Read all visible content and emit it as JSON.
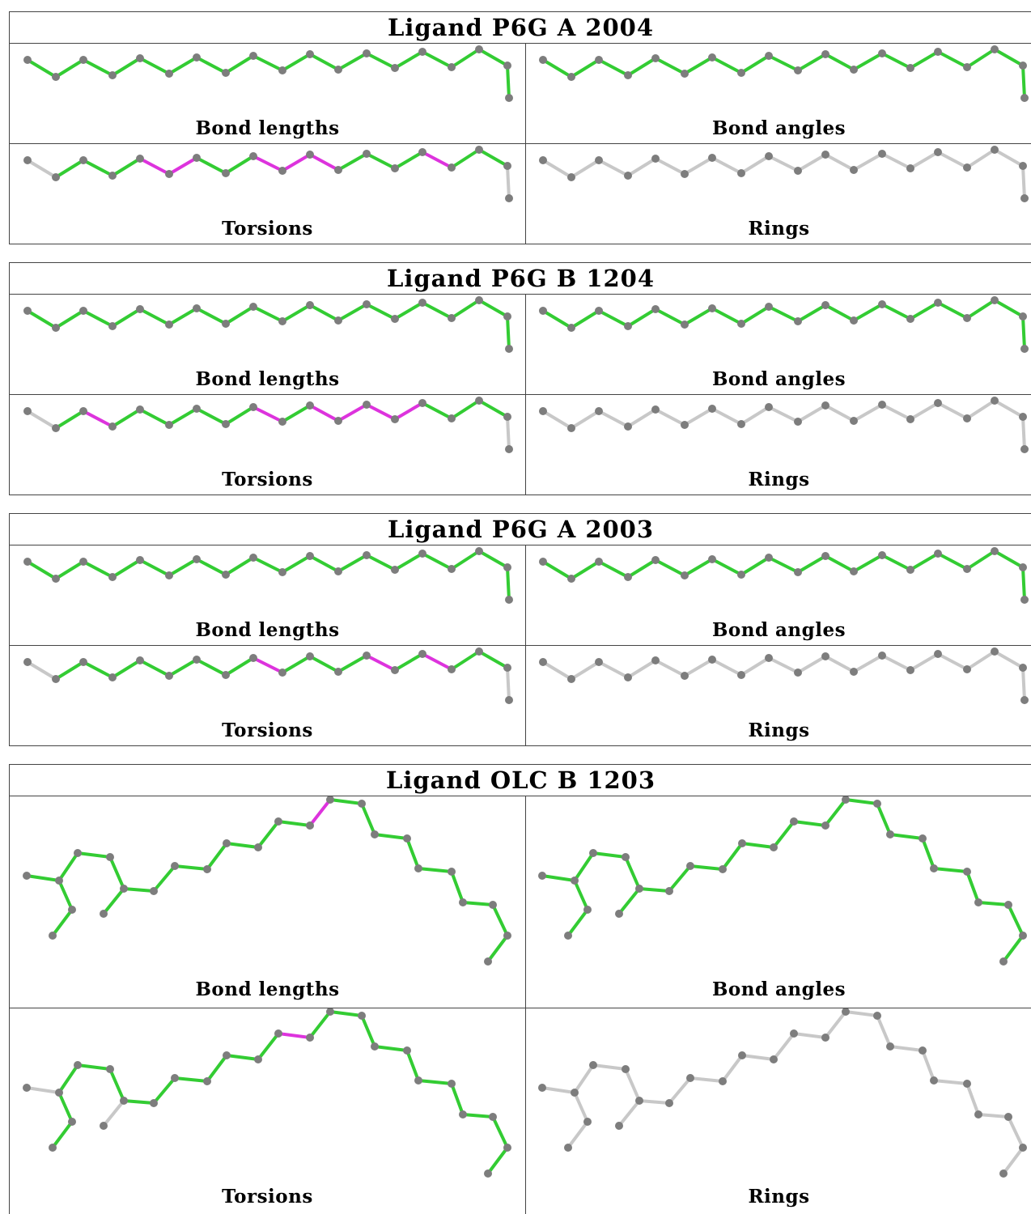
{
  "colors": {
    "ok": "#33cc33",
    "outlier": "#dd33dd",
    "none": "#c8c8c8",
    "atom": "#7d7d7d"
  },
  "panel_labels": [
    "Bond lengths",
    "Bond angles",
    "Torsions",
    "Rings"
  ],
  "ligands": [
    {
      "title": "Ligand P6G A 2004",
      "molecule": "p6g",
      "panels": [
        {
          "label": "Bond lengths",
          "mode": "all"
        },
        {
          "label": "Bond angles",
          "mode": "all"
        },
        {
          "label": "Torsions",
          "mode": "torsion",
          "outliers": [
            4,
            5,
            8,
            9,
            10,
            14
          ]
        },
        {
          "label": "Rings",
          "mode": "none"
        }
      ]
    },
    {
      "title": "Ligand P6G B 1204",
      "molecule": "p6g",
      "panels": [
        {
          "label": "Bond lengths",
          "mode": "all"
        },
        {
          "label": "Bond angles",
          "mode": "all"
        },
        {
          "label": "Torsions",
          "mode": "torsion",
          "outliers": [
            2,
            8,
            10,
            11,
            12,
            13
          ]
        },
        {
          "label": "Rings",
          "mode": "none"
        }
      ]
    },
    {
      "title": "Ligand P6G A 2003",
      "molecule": "p6g",
      "panels": [
        {
          "label": "Bond lengths",
          "mode": "all"
        },
        {
          "label": "Bond angles",
          "mode": "all"
        },
        {
          "label": "Torsions",
          "mode": "torsion",
          "outliers": [
            8,
            12,
            14
          ]
        },
        {
          "label": "Rings",
          "mode": "none"
        }
      ]
    },
    {
      "title": "Ligand OLC B 1203",
      "molecule": "olc",
      "panels": [
        {
          "label": "Bond lengths",
          "mode": "all",
          "outliers": [
            11
          ]
        },
        {
          "label": "Bond angles",
          "mode": "all"
        },
        {
          "label": "Torsions",
          "mode": "torsion",
          "outliers": [
            10
          ]
        },
        {
          "label": "Rings",
          "mode": "none"
        }
      ]
    }
  ]
}
